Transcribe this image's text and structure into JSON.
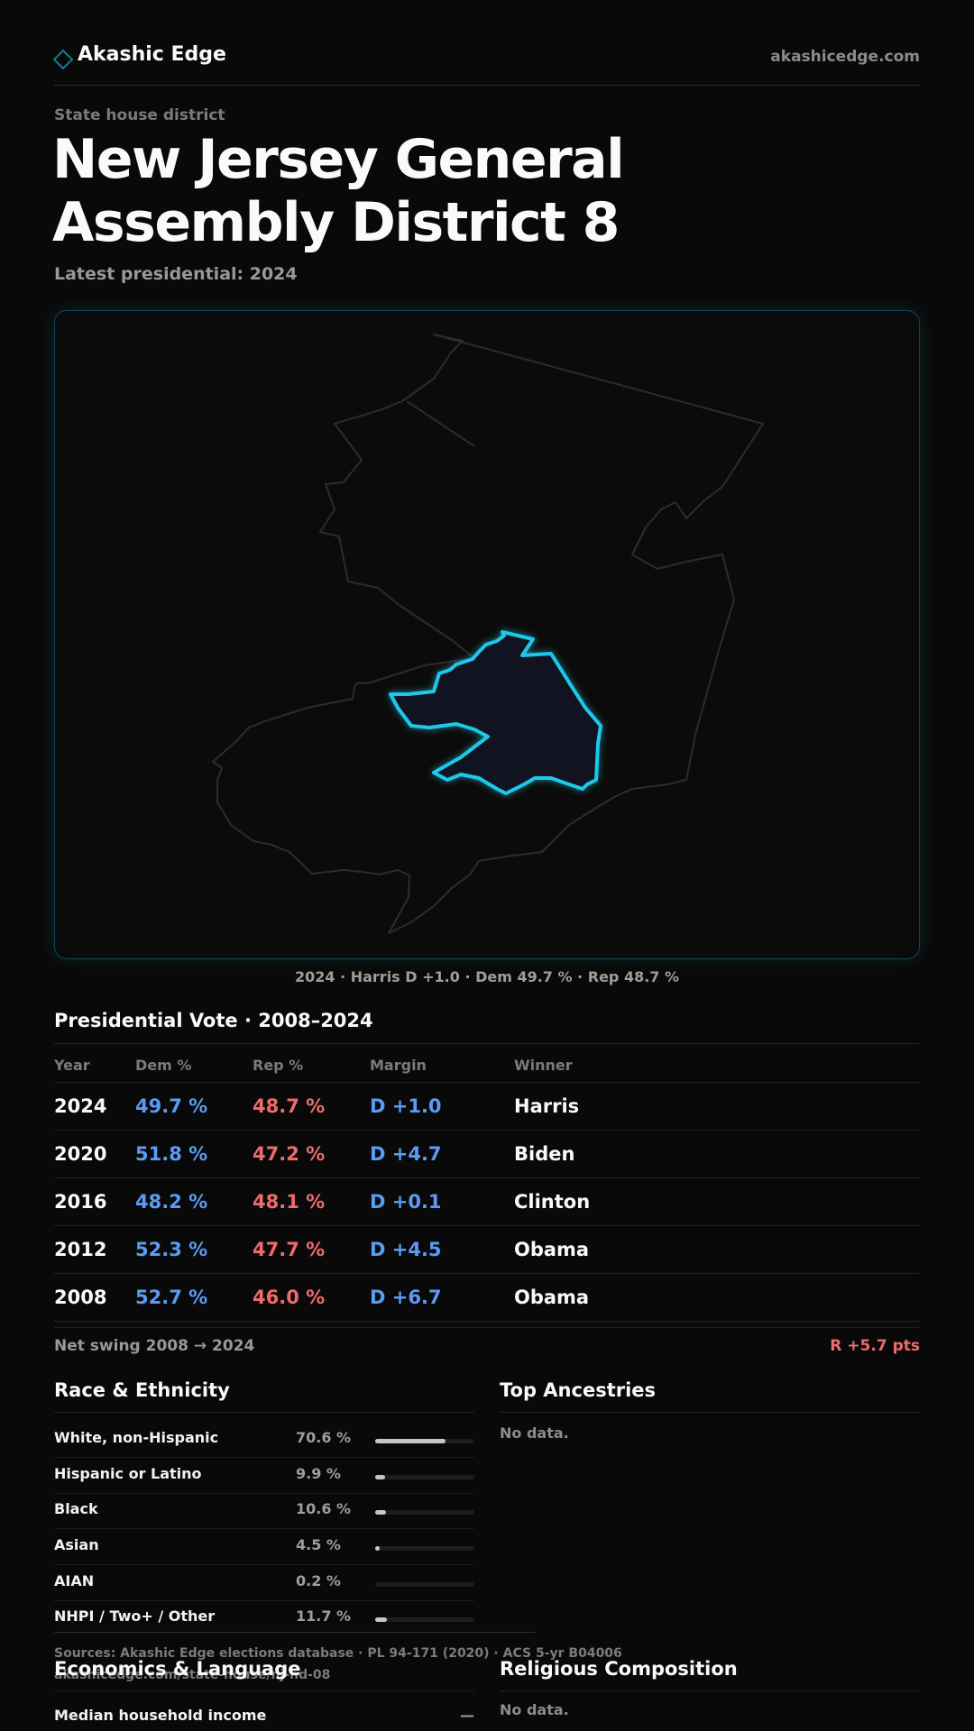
{
  "header": {
    "brand": "Akashic Edge",
    "site": "akashicedge.com"
  },
  "page": {
    "kicker": "State house district",
    "title": "New Jersey General Assembly District 8",
    "subtitle": "Latest presidential: 2024"
  },
  "map": {
    "caption": "2024 · Harris D +1.0 · Dem 49.7 % · Rep 48.7 %",
    "highlight_color": "#1ec8e8",
    "outline_color": "#2e2c2b"
  },
  "presidential": {
    "title": "Presidential Vote · 2008–2024",
    "columns": [
      "Year",
      "Dem %",
      "Rep %",
      "Margin",
      "Winner"
    ],
    "rows": [
      {
        "year": "2024",
        "dem": "49.7 %",
        "rep": "48.7 %",
        "margin": "D +1.0",
        "winner": "Harris"
      },
      {
        "year": "2020",
        "dem": "51.8 %",
        "rep": "47.2 %",
        "margin": "D +4.7",
        "winner": "Biden"
      },
      {
        "year": "2016",
        "dem": "48.2 %",
        "rep": "48.1 %",
        "margin": "D +0.1",
        "winner": "Clinton"
      },
      {
        "year": "2012",
        "dem": "52.3 %",
        "rep": "47.7 %",
        "margin": "D +4.5",
        "winner": "Obama"
      },
      {
        "year": "2008",
        "dem": "52.7 %",
        "rep": "46.0 %",
        "margin": "D +6.7",
        "winner": "Obama"
      }
    ],
    "swing_label": "Net swing 2008 → 2024",
    "swing_value": "R +5.7 pts"
  },
  "race": {
    "title": "Race & Ethnicity",
    "rows": [
      {
        "label": "White, non-Hispanic",
        "pct": "70.6 %",
        "value": 70.6
      },
      {
        "label": "Hispanic or Latino",
        "pct": "9.9 %",
        "value": 9.9
      },
      {
        "label": "Black",
        "pct": "10.6 %",
        "value": 10.6
      },
      {
        "label": "Asian",
        "pct": "4.5 %",
        "value": 4.5
      },
      {
        "label": "AIAN",
        "pct": "0.2 %",
        "value": 0.2
      },
      {
        "label": "NHPI / Two+ / Other",
        "pct": "11.7 %",
        "value": 11.7
      }
    ]
  },
  "ancestries": {
    "title": "Top Ancestries",
    "empty": "No data."
  },
  "economics": {
    "title": "Economics & Language",
    "row_label": "Median household income",
    "row_value": "—"
  },
  "religion": {
    "title": "Religious Composition",
    "empty": "No data."
  },
  "footer": {
    "sources": "Sources: Akashic Edge elections database · PL 94-171 (2020) · ACS 5-yr B04006",
    "url": "akashicedge.com/state-house/nj-hd-08"
  }
}
